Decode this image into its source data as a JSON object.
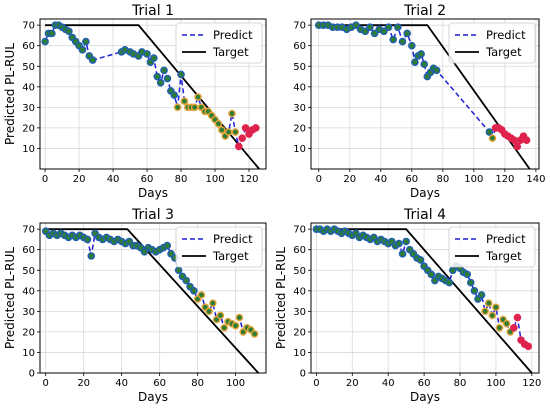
{
  "colors": {
    "predict_line": "#1f1fd6",
    "target_line": "#000000",
    "marker_green": "#2e7d32",
    "marker_green_edge": "#1f5fb3",
    "marker_orange": "#e8a33c",
    "marker_red": "#e0234e",
    "grid": "#d9d9d9"
  },
  "chart_data": [
    {
      "type": "line",
      "title": "Trial 1",
      "xlabel": "Days",
      "ylabel": "Predicted PL-RUL",
      "xlim": [
        -3,
        130
      ],
      "ylim": [
        0,
        73
      ],
      "xticks": [
        0,
        20,
        40,
        60,
        80,
        100,
        120
      ],
      "yticks": [
        10,
        20,
        30,
        40,
        50,
        60,
        70
      ],
      "grid": true,
      "legend": {
        "position": "top-right",
        "entries": [
          "Predict",
          "Target"
        ]
      },
      "target": {
        "x": [
          0,
          55,
          126
        ],
        "y": [
          70,
          70,
          0
        ]
      },
      "predict": {
        "x": [
          0,
          2,
          4,
          6,
          8,
          10,
          12,
          14,
          16,
          18,
          20,
          22,
          24,
          26,
          28,
          45,
          47,
          50,
          52,
          55,
          57,
          60,
          62,
          64,
          66,
          68,
          70,
          72,
          74,
          76,
          78,
          80,
          82,
          84,
          86,
          88,
          90,
          92,
          94,
          96,
          98,
          100,
          102,
          104,
          106,
          108,
          110,
          112,
          114,
          116,
          118,
          120,
          122,
          124
        ],
        "y": [
          62,
          66,
          66,
          70,
          70,
          69,
          68,
          67,
          64,
          62,
          60,
          58,
          62,
          55,
          53,
          57,
          58,
          57,
          56,
          55,
          57,
          56,
          52,
          54,
          45,
          42,
          48,
          44,
          38,
          36,
          30,
          46,
          33,
          30,
          30,
          30,
          35,
          30,
          28,
          28,
          26,
          24,
          22,
          19,
          16,
          18,
          27,
          18,
          11,
          15,
          20,
          17,
          19,
          20
        ],
        "marker": [
          "g",
          "g",
          "g",
          "g",
          "g",
          "g",
          "g",
          "g",
          "g",
          "g",
          "g",
          "g",
          "g",
          "g",
          "g",
          "g",
          "g",
          "g",
          "g",
          "g",
          "g",
          "g",
          "g",
          "g",
          "g",
          "g",
          "g",
          "g",
          "g",
          "g",
          "o",
          "g",
          "o",
          "o",
          "o",
          "o",
          "o",
          "o",
          "o",
          "o",
          "o",
          "o",
          "o",
          "o",
          "o",
          "o",
          "o",
          "o",
          "r",
          "r",
          "r",
          "r",
          "r",
          "r"
        ]
      }
    },
    {
      "type": "line",
      "title": "Trial 2",
      "xlabel": "Days",
      "ylabel": "",
      "xlim": [
        -5,
        142
      ],
      "ylim": [
        0,
        73
      ],
      "xticks": [
        0,
        20,
        40,
        60,
        80,
        100,
        120,
        140
      ],
      "yticks": [
        10,
        20,
        30,
        40,
        50,
        60,
        70
      ],
      "grid": true,
      "legend": {
        "position": "top-right",
        "entries": [
          "Predict",
          "Target"
        ]
      },
      "target": {
        "x": [
          0,
          70,
          136
        ],
        "y": [
          70,
          70,
          0
        ]
      },
      "predict": {
        "x": [
          0,
          3,
          6,
          9,
          12,
          15,
          18,
          21,
          24,
          27,
          30,
          33,
          36,
          39,
          42,
          45,
          48,
          51,
          54,
          57,
          60,
          62,
          64,
          66,
          68,
          70,
          72,
          74,
          76,
          110,
          112,
          114,
          116,
          118,
          120,
          122,
          124,
          126,
          128,
          130,
          132,
          134
        ],
        "y": [
          70,
          70,
          70,
          69,
          69,
          69,
          68,
          69,
          70,
          68,
          67,
          69,
          66,
          68,
          67,
          69,
          63,
          69,
          62,
          66,
          60,
          52,
          55,
          56,
          51,
          45,
          47,
          49,
          48,
          18,
          15,
          20,
          20,
          19,
          17,
          16,
          15,
          14,
          11,
          14,
          16,
          14
        ],
        "marker": [
          "g",
          "g",
          "g",
          "g",
          "g",
          "g",
          "g",
          "g",
          "g",
          "g",
          "g",
          "g",
          "g",
          "g",
          "g",
          "g",
          "g",
          "g",
          "g",
          "g",
          "g",
          "g",
          "g",
          "g",
          "g",
          "g",
          "g",
          "g",
          "g",
          "g",
          "o",
          "r",
          "r",
          "r",
          "r",
          "r",
          "r",
          "r",
          "r",
          "r",
          "r",
          "r"
        ]
      }
    },
    {
      "type": "line",
      "title": "Trial 3",
      "xlabel": "Days",
      "ylabel": "Predicted PL-RUL",
      "xlim": [
        -3,
        116
      ],
      "ylim": [
        0,
        73
      ],
      "xticks": [
        0,
        20,
        40,
        60,
        80,
        100
      ],
      "yticks": [
        0,
        10,
        20,
        30,
        40,
        50,
        60,
        70
      ],
      "grid": true,
      "legend": {
        "position": "top-right",
        "entries": [
          "Predict",
          "Target"
        ]
      },
      "target": {
        "x": [
          0,
          43,
          112
        ],
        "y": [
          70,
          70,
          0
        ]
      },
      "predict": {
        "x": [
          0,
          2,
          4,
          6,
          8,
          10,
          12,
          14,
          16,
          18,
          20,
          22,
          24,
          26,
          28,
          30,
          32,
          34,
          36,
          38,
          40,
          42,
          44,
          46,
          48,
          50,
          52,
          54,
          56,
          58,
          60,
          62,
          64,
          66,
          68,
          70,
          72,
          74,
          76,
          78,
          80,
          82,
          84,
          86,
          88,
          90,
          92,
          94,
          96,
          98,
          100,
          102,
          104,
          106,
          108,
          110
        ],
        "y": [
          69,
          67,
          68,
          67,
          68,
          67,
          66,
          67,
          66,
          67,
          66,
          65,
          57,
          68,
          66,
          65,
          66,
          65,
          64,
          65,
          64,
          63,
          64,
          62,
          62,
          61,
          59,
          61,
          60,
          59,
          60,
          61,
          62,
          58,
          56,
          50,
          47,
          45,
          42,
          40,
          36,
          38,
          32,
          30,
          34,
          26,
          28,
          22,
          25,
          24,
          23,
          27,
          20,
          22,
          21,
          19
        ],
        "marker": [
          "g",
          "g",
          "g",
          "g",
          "g",
          "g",
          "g",
          "g",
          "g",
          "g",
          "g",
          "g",
          "g",
          "g",
          "g",
          "g",
          "g",
          "g",
          "g",
          "g",
          "g",
          "g",
          "g",
          "g",
          "g",
          "g",
          "g",
          "g",
          "g",
          "g",
          "g",
          "g",
          "g",
          "g",
          "g",
          "g",
          "g",
          "g",
          "g",
          "g",
          "o",
          "o",
          "o",
          "o",
          "o",
          "o",
          "o",
          "o",
          "o",
          "o",
          "o",
          "o",
          "o",
          "o",
          "o",
          "o"
        ]
      }
    },
    {
      "type": "line",
      "title": "Trial 4",
      "xlabel": "Days",
      "ylabel": "Predicted PL-RUL",
      "xlim": [
        -3,
        124
      ],
      "ylim": [
        0,
        73
      ],
      "xticks": [
        0,
        20,
        40,
        60,
        80,
        100,
        120
      ],
      "yticks": [
        0,
        10,
        20,
        30,
        40,
        50,
        60,
        70
      ],
      "grid": true,
      "legend": {
        "position": "top-right",
        "entries": [
          "Predict",
          "Target"
        ]
      },
      "target": {
        "x": [
          0,
          50,
          120
        ],
        "y": [
          70,
          70,
          0
        ]
      },
      "predict": {
        "x": [
          0,
          2,
          4,
          6,
          8,
          10,
          12,
          14,
          16,
          18,
          20,
          22,
          24,
          26,
          28,
          30,
          32,
          34,
          36,
          38,
          40,
          42,
          44,
          46,
          48,
          50,
          52,
          54,
          56,
          58,
          60,
          62,
          64,
          66,
          68,
          70,
          72,
          74,
          76,
          78,
          80,
          82,
          84,
          86,
          88,
          90,
          92,
          94,
          96,
          98,
          100,
          102,
          104,
          106,
          108,
          110,
          112,
          114,
          116,
          118
        ],
        "y": [
          70,
          70,
          69,
          70,
          69,
          70,
          69,
          68,
          69,
          68,
          67,
          68,
          66,
          67,
          66,
          65,
          66,
          64,
          65,
          64,
          63,
          64,
          62,
          63,
          58,
          64,
          60,
          58,
          56,
          55,
          52,
          50,
          48,
          45,
          47,
          46,
          45,
          44,
          50,
          52,
          51,
          49,
          48,
          44,
          40,
          36,
          38,
          30,
          34,
          28,
          32,
          22,
          26,
          24,
          20,
          22,
          27,
          16,
          14,
          13
        ],
        "marker": [
          "g",
          "g",
          "g",
          "g",
          "g",
          "g",
          "g",
          "g",
          "g",
          "g",
          "g",
          "g",
          "g",
          "g",
          "g",
          "g",
          "g",
          "g",
          "g",
          "g",
          "g",
          "g",
          "g",
          "g",
          "g",
          "g",
          "g",
          "g",
          "g",
          "g",
          "g",
          "g",
          "g",
          "g",
          "g",
          "g",
          "g",
          "g",
          "g",
          "g",
          "g",
          "g",
          "g",
          "g",
          "g",
          "g",
          "g",
          "o",
          "o",
          "o",
          "o",
          "o",
          "o",
          "o",
          "o",
          "r",
          "r",
          "r",
          "r",
          "r"
        ]
      }
    }
  ]
}
